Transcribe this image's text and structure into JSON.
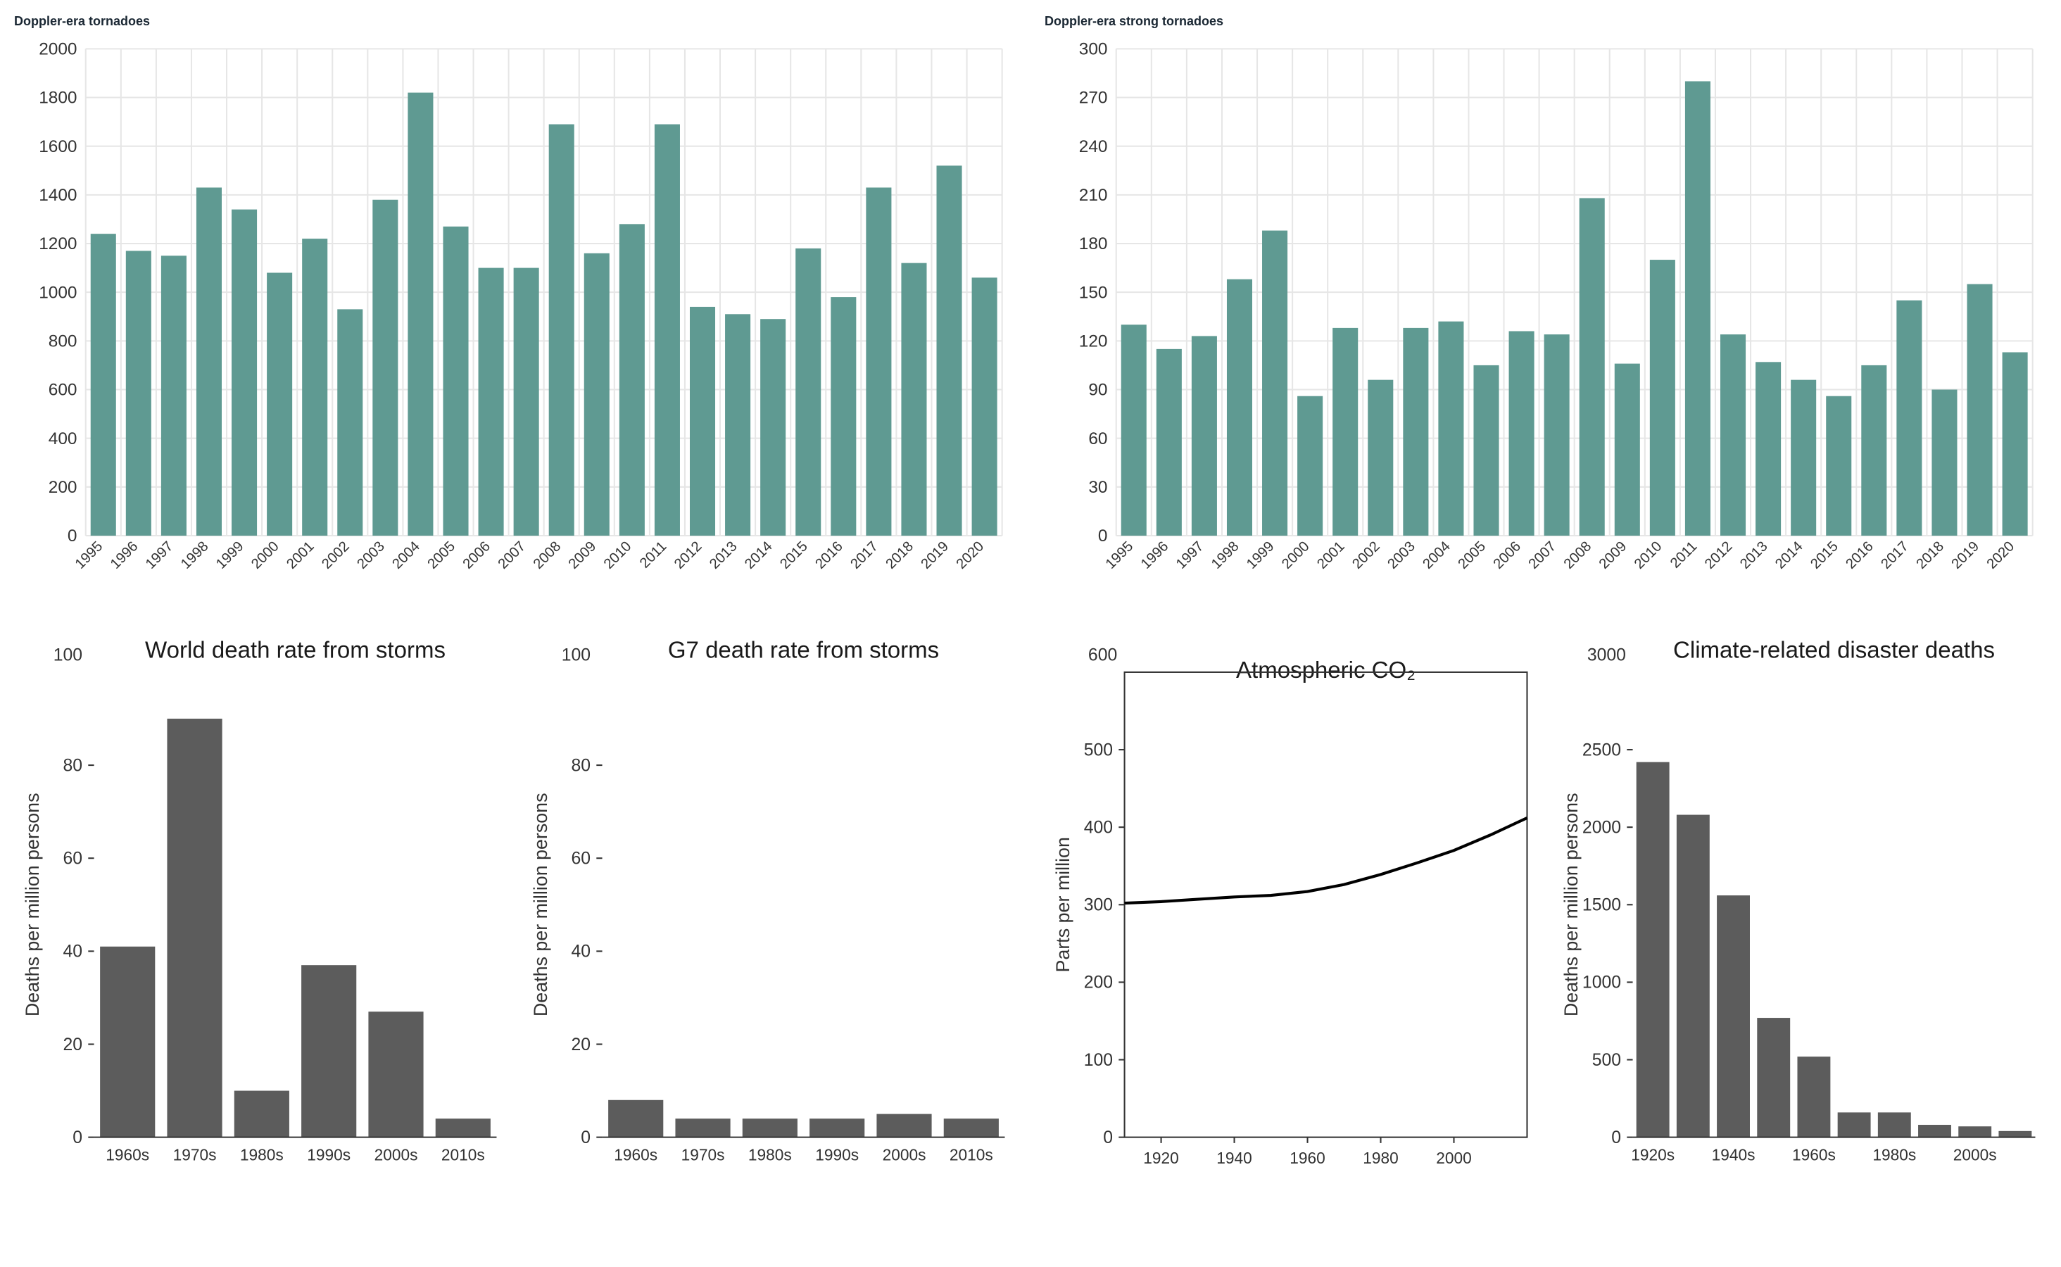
{
  "colors": {
    "teal_bar": "#5f9a92",
    "gray_bar": "#5c5c5c",
    "grid": "#e6e6e6",
    "axis": "#333333",
    "line": "#000000",
    "bg": "#ffffff",
    "title": "#1a2733"
  },
  "fonts": {
    "panel_title_size": 18,
    "panel_title_weight": 700,
    "sub_title_size": 16,
    "tick_size": 12,
    "tick_small": 11,
    "ylabel_size": 13
  },
  "doppler_all": {
    "type": "bar",
    "title": "Doppler-era tornadoes",
    "categories": [
      "1995",
      "1996",
      "1997",
      "1998",
      "1999",
      "2000",
      "2001",
      "2002",
      "2003",
      "2004",
      "2005",
      "2006",
      "2007",
      "2008",
      "2009",
      "2010",
      "2011",
      "2012",
      "2013",
      "2014",
      "2015",
      "2016",
      "2017",
      "2018",
      "2019",
      "2020"
    ],
    "values": [
      1240,
      1170,
      1150,
      1430,
      1340,
      1080,
      1220,
      930,
      1380,
      1820,
      1270,
      1100,
      1100,
      1690,
      1160,
      1280,
      1690,
      940,
      910,
      890,
      1180,
      980,
      1430,
      1120,
      1520,
      1060
    ],
    "ylim": [
      0,
      2000
    ],
    "ytick_step": 200,
    "bar_color": "#5f9a92",
    "grid_color": "#e6e6e6"
  },
  "doppler_strong": {
    "type": "bar",
    "title": "Doppler-era strong tornadoes",
    "categories": [
      "1995",
      "1996",
      "1997",
      "1998",
      "1999",
      "2000",
      "2001",
      "2002",
      "2003",
      "2004",
      "2005",
      "2006",
      "2007",
      "2008",
      "2009",
      "2010",
      "2011",
      "2012",
      "2013",
      "2014",
      "2015",
      "2016",
      "2017",
      "2018",
      "2019",
      "2020"
    ],
    "values": [
      130,
      115,
      123,
      158,
      188,
      86,
      128,
      96,
      128,
      132,
      105,
      126,
      124,
      208,
      106,
      170,
      280,
      124,
      107,
      96,
      86,
      105,
      145,
      90,
      155,
      113
    ],
    "ylim": [
      0,
      300
    ],
    "ytick_step": 30,
    "bar_color": "#5f9a92",
    "grid_color": "#e6e6e6"
  },
  "world_storm_deaths": {
    "type": "bar",
    "title": "World death rate from storms",
    "ylabel": "Deaths per million persons",
    "top_left_label": "100",
    "categories": [
      "1960s",
      "1970s",
      "1980s",
      "1990s",
      "2000s",
      "2010s"
    ],
    "values": [
      41,
      90,
      10,
      37,
      27,
      4
    ],
    "ylim": [
      0,
      100
    ],
    "yticks": [
      0,
      20,
      40,
      60,
      80
    ],
    "bar_color": "#5c5c5c"
  },
  "g7_storm_deaths": {
    "type": "bar",
    "title": "G7 death rate from storms",
    "ylabel": "Deaths per million persons",
    "top_left_label": "100",
    "categories": [
      "1960s",
      "1970s",
      "1980s",
      "1990s",
      "2000s",
      "2010s"
    ],
    "values": [
      8,
      4,
      4,
      4,
      5,
      4
    ],
    "ylim": [
      0,
      100
    ],
    "yticks": [
      0,
      20,
      40,
      60,
      80
    ],
    "bar_color": "#5c5c5c"
  },
  "co2": {
    "type": "line",
    "title": "Atmospheric CO₂",
    "ylabel": "Parts per million",
    "top_left_label": "600",
    "xlim": [
      1910,
      2020
    ],
    "xticks": [
      1920,
      1940,
      1960,
      1980,
      2000
    ],
    "ylim": [
      0,
      600
    ],
    "yticks": [
      0,
      100,
      200,
      300,
      400,
      500
    ],
    "line_color": "#000000",
    "line_width": 2,
    "points": [
      [
        1910,
        302
      ],
      [
        1920,
        304
      ],
      [
        1930,
        307
      ],
      [
        1940,
        310
      ],
      [
        1950,
        312
      ],
      [
        1960,
        317
      ],
      [
        1970,
        326
      ],
      [
        1980,
        339
      ],
      [
        1990,
        354
      ],
      [
        2000,
        370
      ],
      [
        2010,
        390
      ],
      [
        2020,
        412
      ]
    ]
  },
  "disaster_deaths": {
    "type": "bar",
    "title": "Climate-related disaster deaths",
    "ylabel": "Deaths per million persons",
    "top_left_label": "3000",
    "categories": [
      "1920s",
      "1930s",
      "1940s",
      "1950s",
      "1960s",
      "1970s",
      "1980s",
      "1990s",
      "2000s",
      "2010s"
    ],
    "xticks_shown": [
      "1920s",
      "1940s",
      "1960s",
      "1980s",
      "2000s"
    ],
    "values": [
      2420,
      2080,
      1560,
      770,
      520,
      160,
      160,
      80,
      70,
      40
    ],
    "ylim": [
      0,
      3000
    ],
    "yticks": [
      0,
      500,
      1000,
      1500,
      2000,
      2500
    ],
    "bar_color": "#5c5c5c"
  }
}
